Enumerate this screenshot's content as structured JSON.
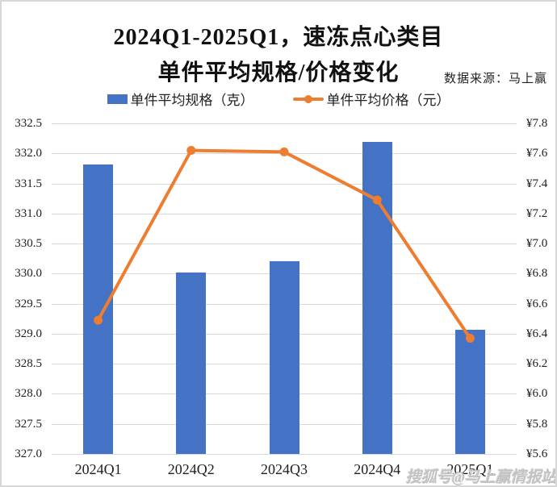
{
  "header": {
    "title_line1": "2024Q1-2025Q1，速冻点心类目",
    "title_line2": "单件平均规格/价格变化",
    "source": "数据来源：马上赢"
  },
  "watermark": "搜狐号@马上赢情报站",
  "colors": {
    "bar": "#4472C4",
    "line": "#ED7D31",
    "gridline": "#D9D9D9",
    "text": "#1F1F1F",
    "watermark": "#C3C3C3"
  },
  "chart_data": {
    "type": "bar",
    "subtype": "combo-bar-line-dual-axis",
    "title": "2024Q1-2025Q1，速冻点心类目 单件平均规格/价格变化",
    "categories": [
      "2024Q1",
      "2024Q2",
      "2024Q3",
      "2024Q4",
      "2025Q1"
    ],
    "series": [
      {
        "name": "单件平均规格（克）",
        "type": "bar",
        "axis": "left",
        "color": "#4472C4",
        "values": [
          331.82,
          330.02,
          330.21,
          332.19,
          329.06
        ]
      },
      {
        "name": "单件平均价格（元）",
        "type": "line",
        "axis": "right",
        "color": "#ED7D31",
        "values": [
          6.49,
          7.62,
          7.61,
          7.29,
          6.37
        ]
      }
    ],
    "left_axis": {
      "label": "单件平均规格（克）",
      "min": 327.0,
      "max": 332.5,
      "step": 0.5,
      "ticks_top_to_bottom": [
        "332.5",
        "332.0",
        "331.5",
        "331.0",
        "330.5",
        "330.0",
        "329.5",
        "329.0",
        "328.5",
        "328.0",
        "327.5",
        "327.0"
      ]
    },
    "right_axis": {
      "label": "单件平均价格（元）",
      "min": 5.6,
      "max": 7.8,
      "step": 0.2,
      "ticks_top_to_bottom": [
        "¥7.8",
        "¥7.6",
        "¥7.4",
        "¥7.2",
        "¥7.0",
        "¥6.8",
        "¥6.6",
        "¥6.4",
        "¥6.2",
        "¥6.0",
        "¥5.8",
        "¥5.6"
      ],
      "currency_prefix": "¥"
    },
    "grid": "horizontal",
    "legend_position": "top",
    "xlabel": "",
    "ylabel": ""
  }
}
